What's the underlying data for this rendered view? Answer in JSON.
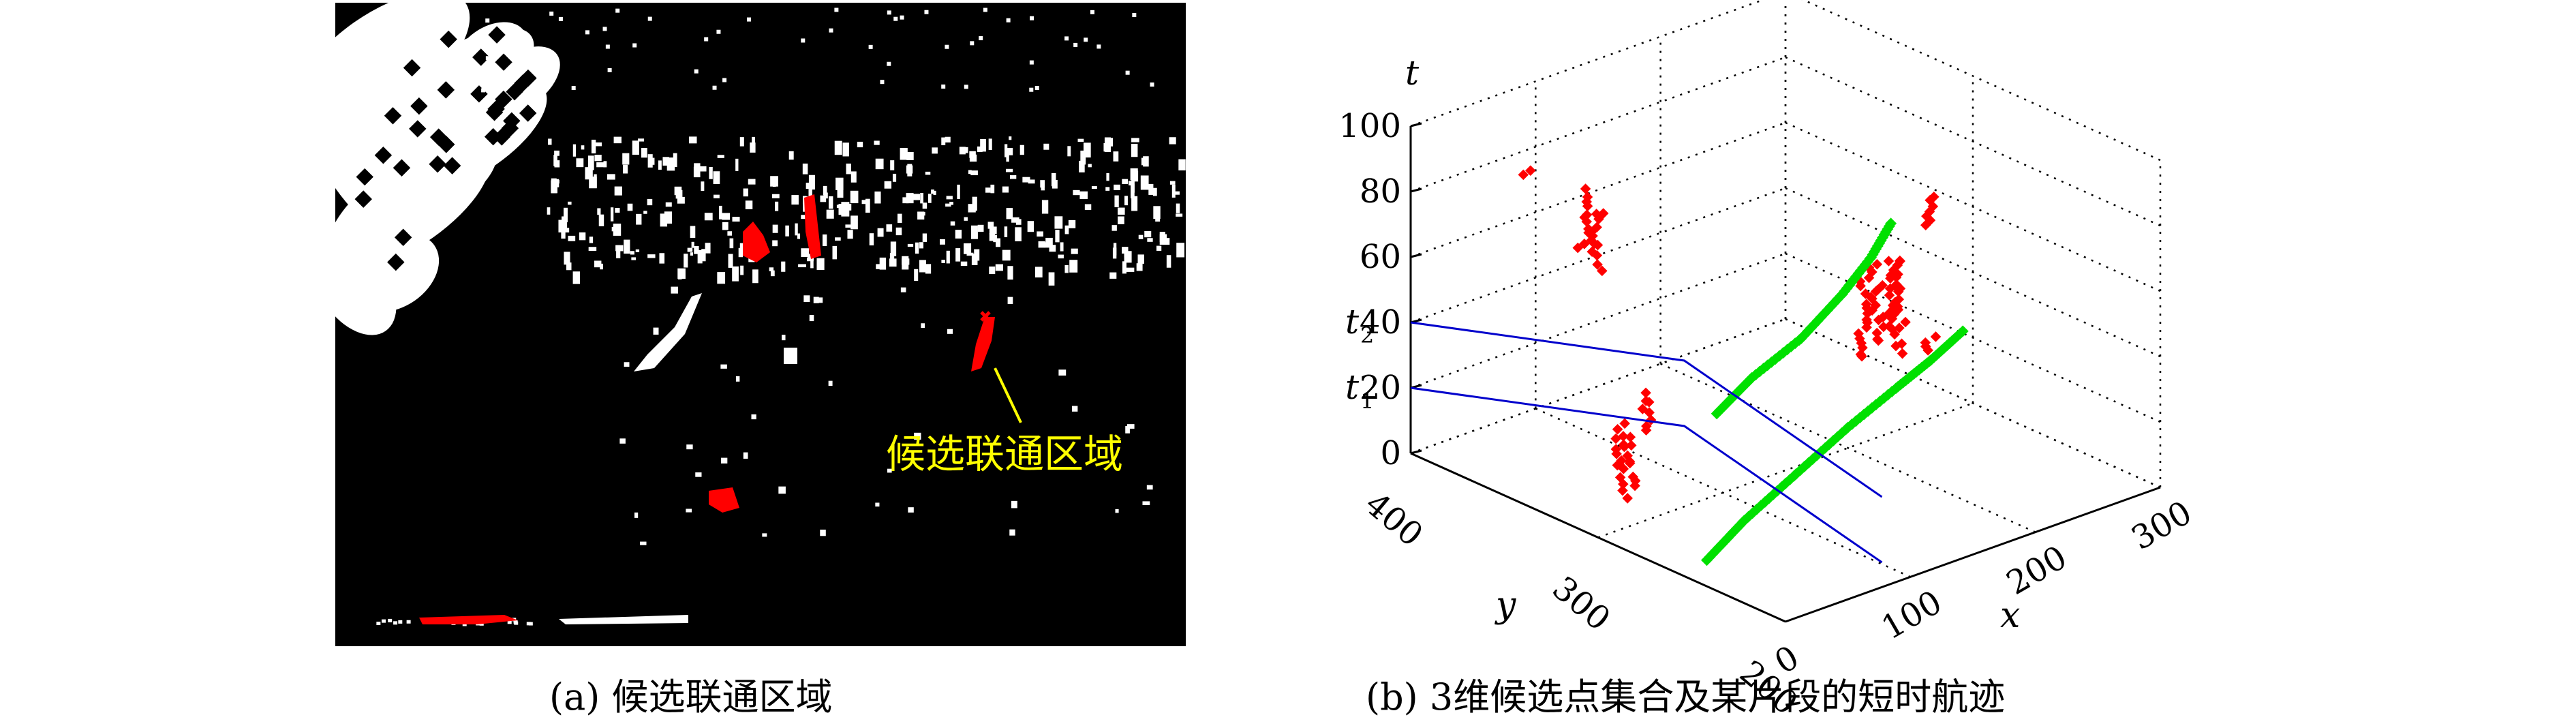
{
  "figure": {
    "panel_a": {
      "caption": "(a) 候选联通区域",
      "annotation": "候选联通区域",
      "annotation_color": "#ffff00",
      "background": "#000000",
      "foreground": "#ffffff",
      "highlight": "#ff0000"
    },
    "panel_b": {
      "caption": "(b) 3维候选点集合及某片段的短时航迹"
    }
  },
  "chart_data": [
    {
      "type": "image",
      "panel": "a",
      "description_text": "候选联通区域",
      "colors": {
        "background": "#000000",
        "clutter": "#ffffff",
        "candidate_regions": "#ff0000",
        "annotation": "#ffff00"
      },
      "candidate_region_count": 5
    },
    {
      "type": "scatter3d",
      "panel": "b",
      "xlabel": "x",
      "ylabel": "y",
      "zlabel": "t",
      "xlim": [
        0,
        300
      ],
      "ylim": [
        200,
        400
      ],
      "zlim": [
        0,
        100
      ],
      "xticks": [
        "0",
        "100",
        "200",
        "300"
      ],
      "yticks": [
        "200",
        "300",
        "400"
      ],
      "zticks": [
        "0",
        "20",
        "40",
        "60",
        "80",
        "100"
      ],
      "zmarks": [
        {
          "label": "t",
          "sub": "2",
          "value": 40
        },
        {
          "label": "t",
          "sub": "1",
          "value": 20
        }
      ],
      "grid": true,
      "series": [
        {
          "color": "#ff0000",
          "marker": "diamond",
          "clusters": [
            {
              "x": 0,
              "y": 300,
              "t": [
                82,
                100
              ]
            },
            {
              "x": 8,
              "y": 312,
              "t": [
                84,
                102
              ]
            },
            {
              "x": 4,
              "y": 340,
              "t": [
                100,
                102
              ]
            },
            {
              "x": 2,
              "y": 285,
              "t": [
                16,
                34
              ]
            },
            {
              "x": 8,
              "y": 292,
              "t": [
                18,
                36
              ]
            },
            {
              "x": 18,
              "y": 285,
              "t": [
                34,
                46
              ]
            },
            {
              "x": 130,
              "y": 210,
              "t": [
                100,
                110
              ]
            },
            {
              "x": 100,
              "y": 225,
              "t": [
                60,
                84
              ]
            },
            {
              "x": 110,
              "y": 225,
              "t": [
                64,
                88
              ]
            },
            {
              "x": 120,
              "y": 222,
              "t": [
                60,
                90
              ]
            },
            {
              "x": 130,
              "y": 225,
              "t": [
                66,
                86
              ]
            },
            {
              "x": 175,
              "y": 240,
              "t": [
                48,
                54
              ]
            }
          ]
        },
        {
          "color": "#00e000",
          "marker": "diamond",
          "tracks": [
            {
              "x": [
                20,
                45,
                80,
                110,
                130,
                145
              ],
              "y": [
                250,
                248,
                245,
                243,
                241,
                240
              ],
              "t": [
                48,
                56,
                64,
                74,
                83,
                92
              ]
            },
            {
              "x": [
                0,
                30,
                70,
                110,
                150,
                175,
                200
              ],
              "y": [
                242,
                242,
                241,
                240,
                240,
                239,
                238
              ],
              "t": [
                8,
                16,
                25,
                34,
                41,
                46,
                52
              ]
            }
          ]
        }
      ],
      "track_box_color": "#0000cc"
    }
  ]
}
